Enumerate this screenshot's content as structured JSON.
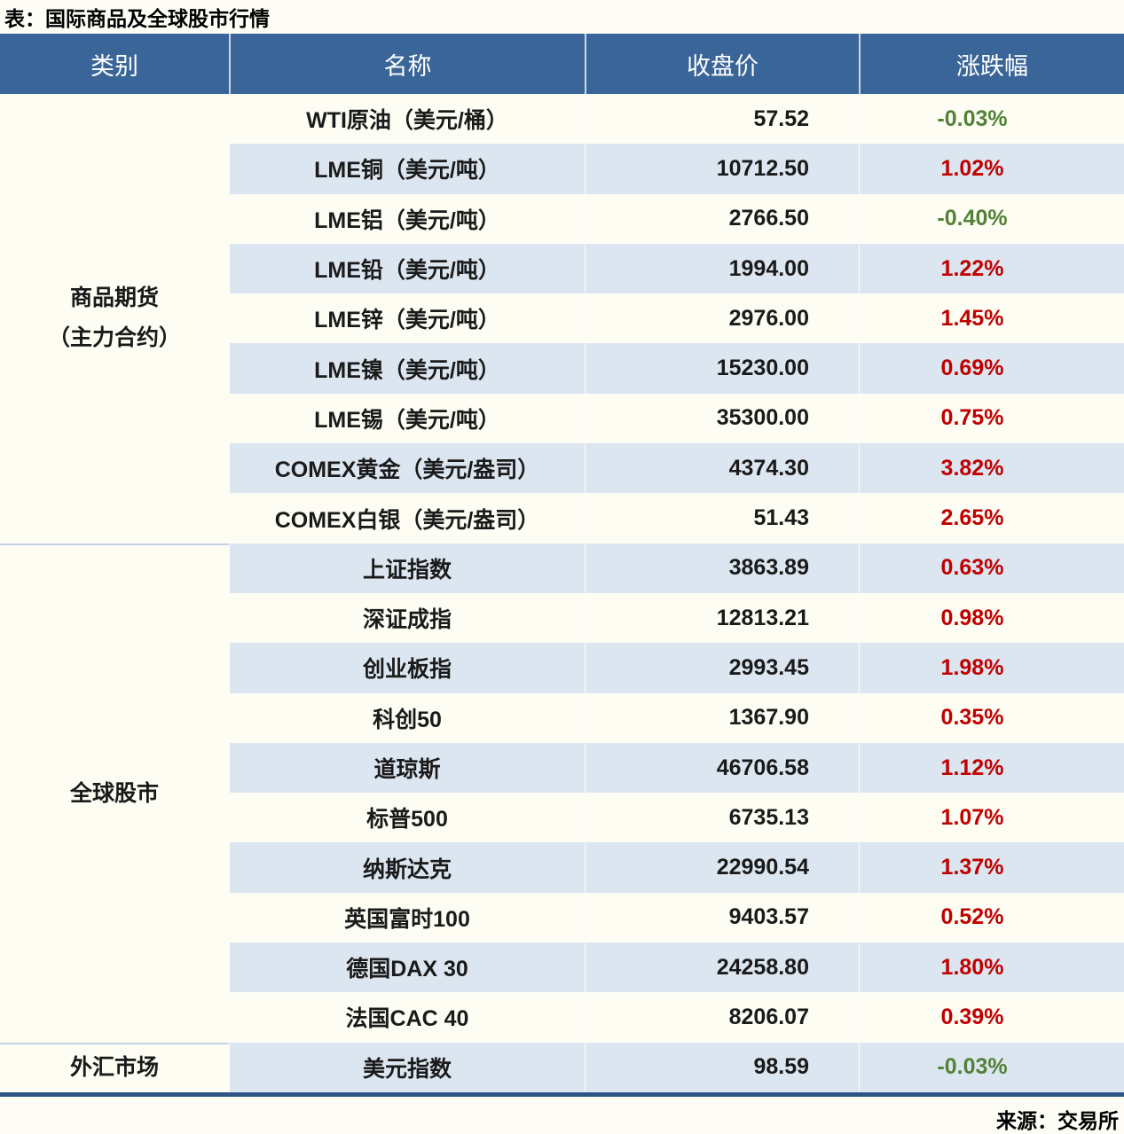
{
  "title": "表：国际商品及全球股市行情",
  "source": "来源：交易所",
  "colors": {
    "header_bg": "#3a6598",
    "stripe_bg": "#dce6f1",
    "row_bg": "#fdfdf4",
    "up_color": "#c00000",
    "down_color": "#538135",
    "bottom_border": "#2e5584"
  },
  "table": {
    "headers": [
      "类别",
      "名称",
      "收盘价",
      "涨跌幅"
    ],
    "groups": [
      {
        "category": "商品期货\n（主力合约）",
        "rows": [
          {
            "name": "WTI原油（美元/桶）",
            "close": "57.52",
            "change": "-0.03%",
            "trend": "down"
          },
          {
            "name": "LME铜（美元/吨）",
            "close": "10712.50",
            "change": "1.02%",
            "trend": "up"
          },
          {
            "name": "LME铝（美元/吨）",
            "close": "2766.50",
            "change": "-0.40%",
            "trend": "down"
          },
          {
            "name": "LME铅（美元/吨）",
            "close": "1994.00",
            "change": "1.22%",
            "trend": "up"
          },
          {
            "name": "LME锌（美元/吨）",
            "close": "2976.00",
            "change": "1.45%",
            "trend": "up"
          },
          {
            "name": "LME镍（美元/吨）",
            "close": "15230.00",
            "change": "0.69%",
            "trend": "up"
          },
          {
            "name": "LME锡（美元/吨）",
            "close": "35300.00",
            "change": "0.75%",
            "trend": "up"
          },
          {
            "name": "COMEX黄金（美元/盎司）",
            "close": "4374.30",
            "change": "3.82%",
            "trend": "up"
          },
          {
            "name": "COMEX白银（美元/盎司）",
            "close": "51.43",
            "change": "2.65%",
            "trend": "up"
          }
        ]
      },
      {
        "category": "全球股市",
        "rows": [
          {
            "name": "上证指数",
            "close": "3863.89",
            "change": "0.63%",
            "trend": "up"
          },
          {
            "name": "深证成指",
            "close": "12813.21",
            "change": "0.98%",
            "trend": "up"
          },
          {
            "name": "创业板指",
            "close": "2993.45",
            "change": "1.98%",
            "trend": "up"
          },
          {
            "name": "科创50",
            "close": "1367.90",
            "change": "0.35%",
            "trend": "up"
          },
          {
            "name": "道琼斯",
            "close": "46706.58",
            "change": "1.12%",
            "trend": "up"
          },
          {
            "name": "标普500",
            "close": "6735.13",
            "change": "1.07%",
            "trend": "up"
          },
          {
            "name": "纳斯达克",
            "close": "22990.54",
            "change": "1.37%",
            "trend": "up"
          },
          {
            "name": "英国富时100",
            "close": "9403.57",
            "change": "0.52%",
            "trend": "up"
          },
          {
            "name": "德国DAX 30",
            "close": "24258.80",
            "change": "1.80%",
            "trend": "up"
          },
          {
            "name": "法国CAC 40",
            "close": "8206.07",
            "change": "0.39%",
            "trend": "up"
          }
        ]
      },
      {
        "category": "外汇市场",
        "rows": [
          {
            "name": "美元指数",
            "close": "98.59",
            "change": "-0.03%",
            "trend": "down"
          }
        ]
      }
    ]
  }
}
